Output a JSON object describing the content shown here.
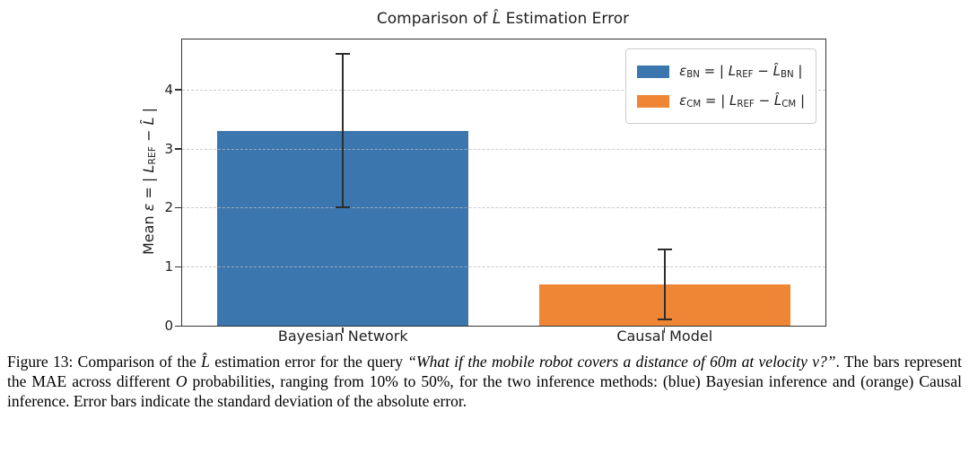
{
  "figure": {
    "title_tokens": [
      [
        "Comparison of "
      ],
      [
        "L̂",
        "i"
      ],
      [
        " Estimation Error"
      ]
    ],
    "ylabel_tokens": [
      [
        "Mean "
      ],
      [
        "ε",
        "i"
      ],
      [
        " = | "
      ],
      [
        "L",
        "i"
      ],
      [
        "REF",
        "sub"
      ],
      [
        " − "
      ],
      [
        "L̂",
        "i"
      ],
      [
        " |"
      ]
    ]
  },
  "chart_data": {
    "type": "bar",
    "title": "Comparison of L̂ Estimation Error",
    "ylabel": "Mean ε = | L_REF − L̂ |",
    "xlabel": "",
    "categories": [
      "Bayesian Network",
      "Causal Model"
    ],
    "values": [
      3.3,
      0.7
    ],
    "errors": [
      1.3,
      0.6
    ],
    "bar_colors": [
      "#3b76af",
      "#ef8636"
    ],
    "error_bar_color": "#2d2d2d",
    "ylim": [
      0,
      4.85
    ],
    "yticks": [
      0,
      1,
      2,
      3,
      4
    ],
    "grid": {
      "axis": "y",
      "style": "dashed",
      "color": "#bbbbbb"
    },
    "legend": {
      "position": "upper right",
      "entries": [
        {
          "color": "#3b76af",
          "label": "ε_BN = | L_REF − L̂_BN |",
          "tokens": [
            [
              "ε",
              "i"
            ],
            [
              "BN",
              "sub"
            ],
            [
              " = | "
            ],
            [
              "L",
              "i"
            ],
            [
              "REF",
              "sub"
            ],
            [
              " − "
            ],
            [
              "L̂",
              "i"
            ],
            [
              "BN",
              "sub"
            ],
            [
              " |"
            ]
          ]
        },
        {
          "color": "#ef8636",
          "label": "ε_CM = | L_REF − L̂_CM |",
          "tokens": [
            [
              "ε",
              "i"
            ],
            [
              "CM",
              "sub"
            ],
            [
              " = | "
            ],
            [
              "L",
              "i"
            ],
            [
              "REF",
              "sub"
            ],
            [
              " − "
            ],
            [
              "L̂",
              "i"
            ],
            [
              "CM",
              "sub"
            ],
            [
              " |"
            ]
          ]
        }
      ]
    }
  },
  "caption": {
    "segments": [
      [
        "Figure 13: Comparison of the "
      ],
      [
        "L̂",
        "i"
      ],
      [
        " estimation error for the query "
      ],
      [
        "“What if the mobile robot covers a distance of 60m at velocity v?”",
        "i"
      ],
      [
        ". The bars represent the MAE across different "
      ],
      [
        "O",
        "i"
      ],
      [
        " probabilities, ranging from 10% to 50%, for the two inference methods: (blue) Bayesian inference and (orange) Causal inference. Error bars indicate the standard deviation of the absolute error."
      ]
    ]
  }
}
